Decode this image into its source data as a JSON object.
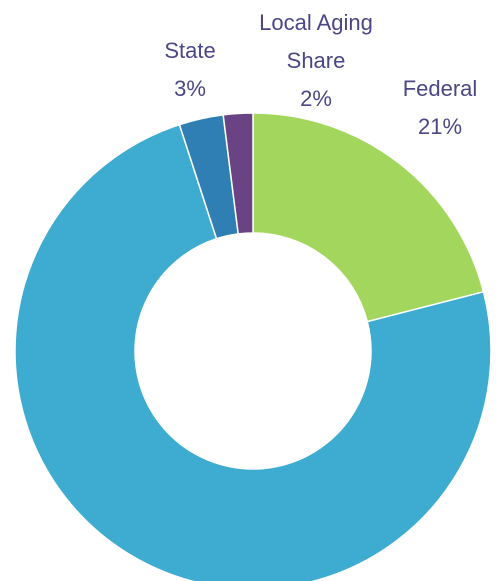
{
  "chart_data": {
    "type": "donut",
    "categories": [
      "Federal",
      null,
      "State",
      "Local Aging Share"
    ],
    "values": [
      21,
      74,
      3,
      2
    ],
    "value_labels": [
      "21%",
      null,
      "3%",
      "2%"
    ],
    "colors": [
      "#a3d65c",
      "#3eabd0",
      "#2f7fb4",
      "#6a4384"
    ]
  }
}
